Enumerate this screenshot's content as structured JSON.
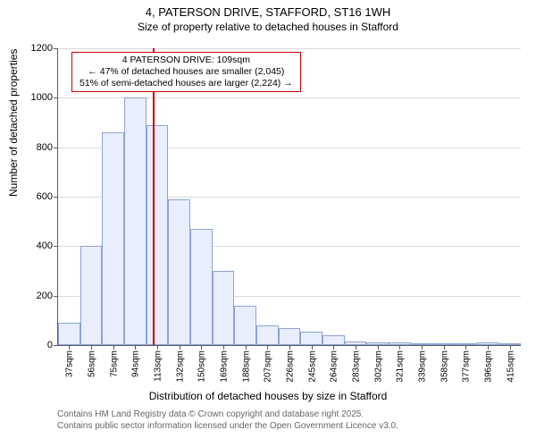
{
  "header": {
    "line1": "4, PATERSON DRIVE, STAFFORD, ST16 1WH",
    "line2": "Size of property relative to detached houses in Stafford"
  },
  "chart": {
    "type": "histogram",
    "ylim": [
      0,
      1200
    ],
    "ytick_step": 200,
    "yticks": [
      0,
      200,
      400,
      600,
      800,
      1000,
      1200
    ],
    "yaxis_title": "Number of detached properties",
    "xaxis_title": "Distribution of detached houses by size in Stafford",
    "bar_fill": "#e8eefb",
    "bar_border": "#8da3d6",
    "grid_color": "#d9d9d9",
    "axis_color": "#5b5b5b",
    "background": "#ffffff",
    "bars": [
      {
        "label": "37sqm",
        "value": 90
      },
      {
        "label": "56sqm",
        "value": 400
      },
      {
        "label": "75sqm",
        "value": 860
      },
      {
        "label": "94sqm",
        "value": 1000
      },
      {
        "label": "113sqm",
        "value": 890
      },
      {
        "label": "132sqm",
        "value": 590
      },
      {
        "label": "150sqm",
        "value": 470
      },
      {
        "label": "169sqm",
        "value": 300
      },
      {
        "label": "188sqm",
        "value": 160
      },
      {
        "label": "207sqm",
        "value": 80
      },
      {
        "label": "226sqm",
        "value": 70
      },
      {
        "label": "245sqm",
        "value": 55
      },
      {
        "label": "264sqm",
        "value": 40
      },
      {
        "label": "283sqm",
        "value": 15
      },
      {
        "label": "302sqm",
        "value": 10
      },
      {
        "label": "321sqm",
        "value": 10
      },
      {
        "label": "339sqm",
        "value": 8
      },
      {
        "label": "358sqm",
        "value": 6
      },
      {
        "label": "377sqm",
        "value": 5
      },
      {
        "label": "396sqm",
        "value": 10
      },
      {
        "label": "415sqm",
        "value": 4
      }
    ],
    "marker": {
      "position_index": 3.8,
      "color": "#cc0000"
    },
    "annotation": {
      "line1": "4 PATERSON DRIVE: 109sqm",
      "line2": "← 47% of detached houses are smaller (2,045)",
      "line3": "51% of semi-detached houses are larger (2,224) →",
      "border_color": "#cc0000"
    }
  },
  "footer": {
    "line1": "Contains HM Land Registry data © Crown copyright and database right 2025.",
    "line2": "Contains public sector information licensed under the Open Government Licence v3.0."
  }
}
